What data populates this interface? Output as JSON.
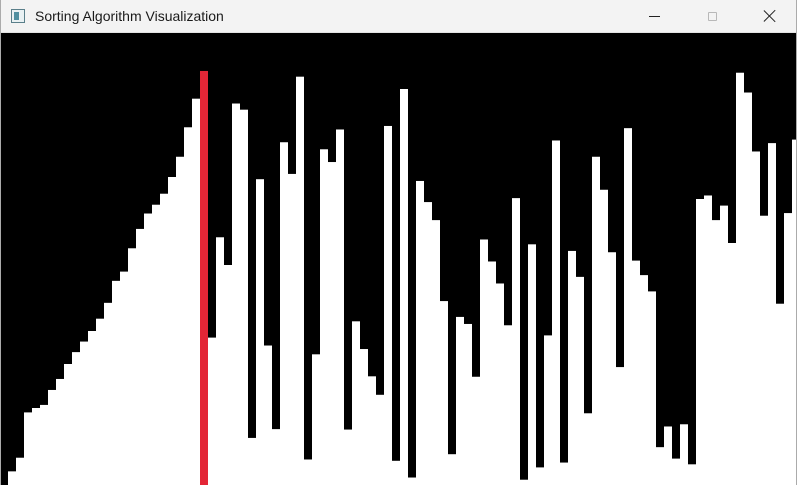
{
  "window": {
    "title": "Sorting Algorithm Visualization"
  },
  "icons": {
    "app": "app-window-icon",
    "minimize": "minimize-icon",
    "maximize": "maximize-icon",
    "close": "close-icon"
  },
  "chart_data": {
    "type": "bar",
    "background_color": "#000000",
    "bar_color": "#ffffff",
    "highlight_color": "#e32636",
    "highlight_index": 24,
    "ylim": [
      0,
      1
    ],
    "values": [
      0.031,
      0.062,
      0.165,
      0.175,
      0.182,
      0.216,
      0.241,
      0.275,
      0.302,
      0.326,
      0.35,
      0.378,
      0.414,
      0.464,
      0.485,
      0.538,
      0.582,
      0.617,
      0.637,
      0.662,
      0.7,
      0.746,
      0.813,
      0.878,
      0.941,
      0.335,
      0.563,
      0.5,
      0.867,
      0.853,
      0.107,
      0.695,
      0.317,
      0.127,
      0.779,
      0.707,
      0.928,
      0.058,
      0.297,
      0.763,
      0.734,
      0.808,
      0.126,
      0.372,
      0.309,
      0.247,
      0.205,
      0.816,
      0.055,
      0.9,
      0.017,
      0.691,
      0.643,
      0.602,
      0.418,
      0.07,
      0.382,
      0.366,
      0.246,
      0.558,
      0.508,
      0.458,
      0.363,
      0.652,
      0.012,
      0.547,
      0.04,
      0.34,
      0.783,
      0.051,
      0.532,
      0.473,
      0.163,
      0.746,
      0.671,
      0.529,
      0.268,
      0.811,
      0.51,
      0.477,
      0.44,
      0.086,
      0.133,
      0.06,
      0.138,
      0.047,
      0.65,
      0.658,
      0.602,
      0.635,
      0.55,
      0.937,
      0.892,
      0.758,
      0.612,
      0.777,
      0.412,
      0.618,
      0.785,
      0.645
    ]
  }
}
